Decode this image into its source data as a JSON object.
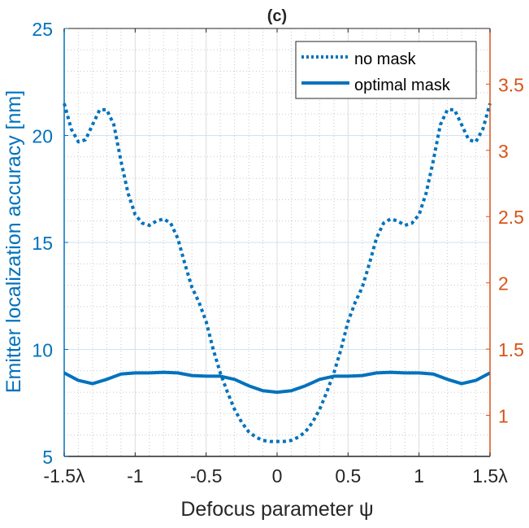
{
  "chart_data": {
    "type": "line",
    "title": "(c)",
    "xlabel": "Defocus parameter ψ",
    "ylabel": "Emitter localization accuracy [nm]",
    "xlim": [
      -1.5,
      1.5
    ],
    "ylim": [
      5,
      25
    ],
    "y2lim": [
      0.69,
      3.92
    ],
    "x_ticks": [
      -1.5,
      -1,
      -0.5,
      0,
      0.5,
      1,
      1.5
    ],
    "x_tick_labels": [
      "-1.5λ",
      "-1",
      "-0.5",
      "0",
      "0.5",
      "1",
      "1.5λ"
    ],
    "y_ticks": [
      5,
      10,
      15,
      20,
      25
    ],
    "y_tick_labels": [
      "5",
      "10",
      "15",
      "20",
      "25"
    ],
    "y2_ticks": [
      1,
      1.5,
      2,
      2.5,
      3,
      3.5
    ],
    "y2_tick_labels": [
      "1",
      "1.5",
      "2",
      "2.5",
      "3",
      "3.5"
    ],
    "grid": true,
    "legend_position": "top-right",
    "colors": {
      "series": "#0072BD",
      "right_axis": "#D95319",
      "axis": "#262626"
    },
    "series": [
      {
        "name": "no mask",
        "style": "dotted",
        "x": [
          -1.5,
          -1.45,
          -1.4,
          -1.35,
          -1.3,
          -1.25,
          -1.2,
          -1.15,
          -1.1,
          -1.05,
          -1.0,
          -0.95,
          -0.9,
          -0.85,
          -0.8,
          -0.75,
          -0.7,
          -0.65,
          -0.6,
          -0.55,
          -0.5,
          -0.45,
          -0.4,
          -0.35,
          -0.3,
          -0.25,
          -0.2,
          -0.15,
          -0.1,
          -0.05,
          0,
          0.05,
          0.1,
          0.15,
          0.2,
          0.25,
          0.3,
          0.35,
          0.4,
          0.45,
          0.5,
          0.55,
          0.6,
          0.65,
          0.7,
          0.75,
          0.8,
          0.85,
          0.9,
          0.95,
          1.0,
          1.05,
          1.1,
          1.15,
          1.2,
          1.25,
          1.3,
          1.35,
          1.4,
          1.45,
          1.5
        ],
        "y": [
          21.5,
          20.3,
          19.7,
          19.8,
          20.5,
          21.2,
          21.2,
          20.5,
          18.8,
          17.3,
          16.3,
          15.9,
          15.8,
          16.0,
          16.1,
          15.9,
          15.2,
          14.0,
          12.9,
          12.2,
          11.3,
          10.0,
          8.9,
          8.0,
          7.2,
          6.6,
          6.15,
          5.9,
          5.75,
          5.7,
          5.7,
          5.7,
          5.75,
          5.9,
          6.15,
          6.6,
          7.2,
          8.0,
          8.9,
          10.0,
          11.3,
          12.2,
          12.9,
          14.0,
          15.2,
          15.9,
          16.1,
          16.0,
          15.8,
          15.9,
          16.3,
          17.3,
          18.8,
          20.5,
          21.2,
          21.2,
          20.5,
          19.8,
          19.7,
          20.3,
          21.5
        ]
      },
      {
        "name": "optimal mask",
        "style": "solid",
        "x": [
          -1.5,
          -1.4,
          -1.3,
          -1.2,
          -1.1,
          -1.0,
          -0.9,
          -0.8,
          -0.7,
          -0.6,
          -0.5,
          -0.4,
          -0.3,
          -0.2,
          -0.1,
          0,
          0.1,
          0.2,
          0.3,
          0.4,
          0.5,
          0.6,
          0.7,
          0.8,
          0.9,
          1.0,
          1.1,
          1.2,
          1.3,
          1.4,
          1.5
        ],
        "y": [
          8.9,
          8.55,
          8.4,
          8.6,
          8.85,
          8.9,
          8.9,
          8.93,
          8.9,
          8.78,
          8.75,
          8.75,
          8.6,
          8.3,
          8.07,
          8.0,
          8.07,
          8.3,
          8.6,
          8.75,
          8.75,
          8.78,
          8.9,
          8.93,
          8.9,
          8.9,
          8.85,
          8.6,
          8.4,
          8.55,
          8.9
        ]
      }
    ]
  }
}
